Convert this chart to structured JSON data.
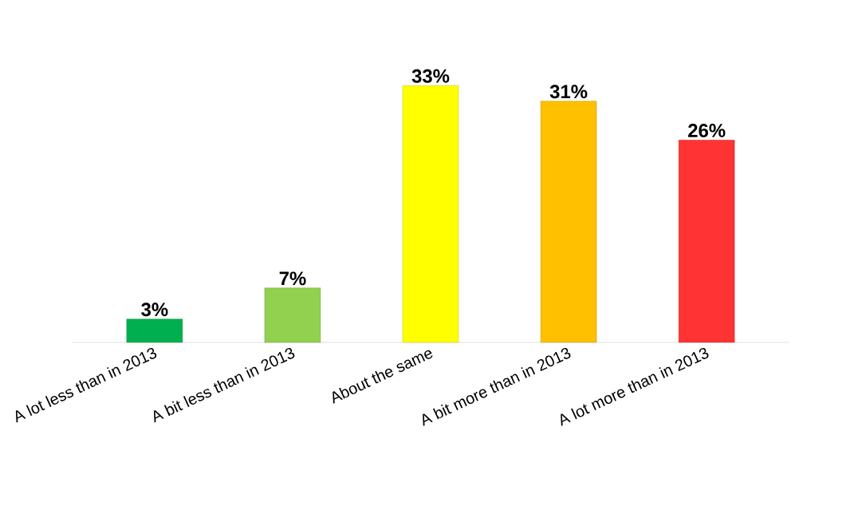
{
  "chart_data": {
    "type": "bar",
    "categories": [
      "A lot less than  in 2013",
      "A bit less than in 2013",
      "About the same",
      "A bit more than in 2013",
      "A lot more than in 2013"
    ],
    "values": [
      3,
      7,
      33,
      31,
      26
    ],
    "colors": [
      "#00b050",
      "#92d050",
      "#ffff00",
      "#ffc000",
      "#ff3333"
    ],
    "value_labels": [
      "3%",
      "7%",
      "33%",
      "31%",
      "26%"
    ]
  }
}
